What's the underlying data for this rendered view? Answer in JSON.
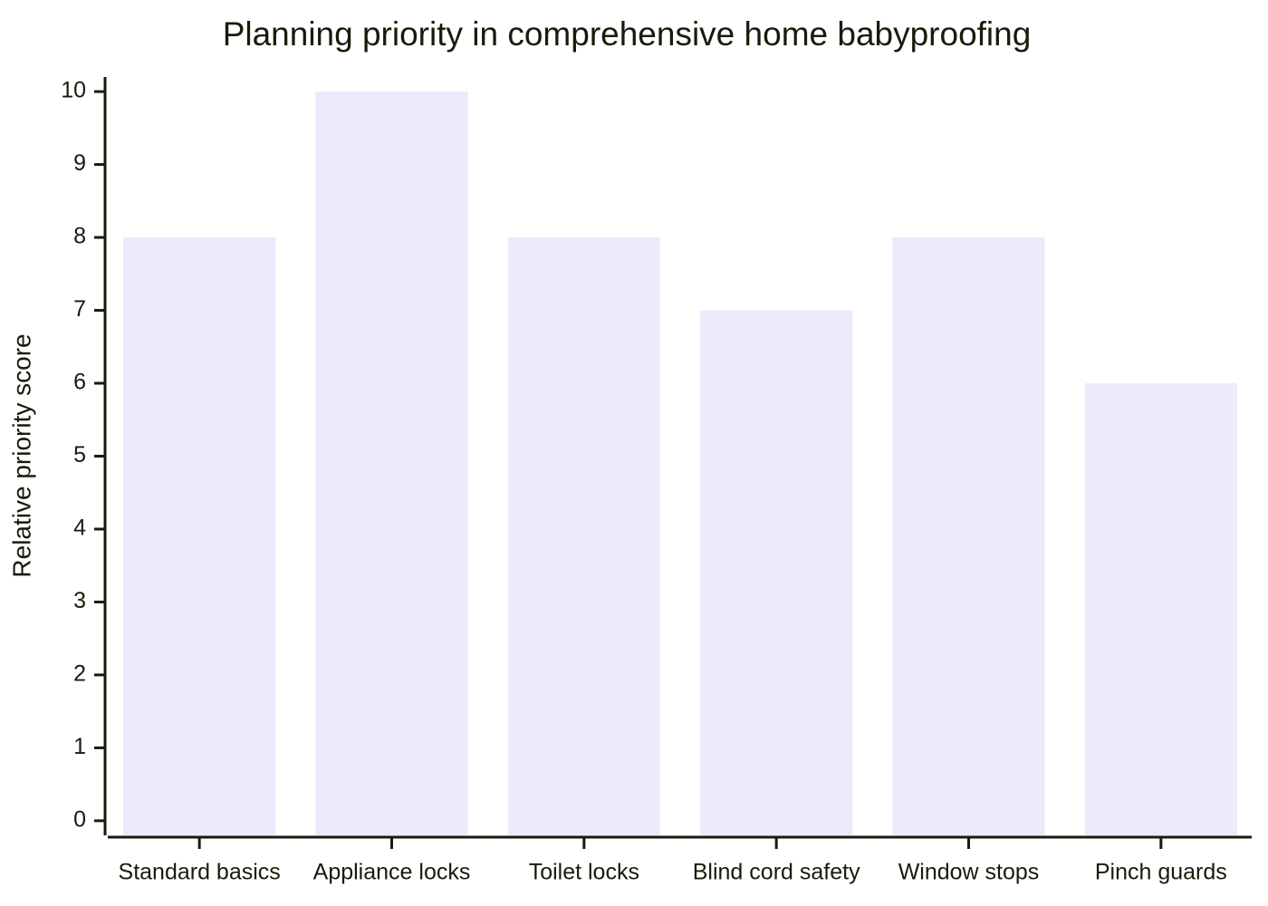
{
  "chart_data": {
    "type": "bar",
    "title": "Planning priority in comprehensive home babyproofing",
    "y_label": "Relative priority score",
    "categories": [
      "Standard basics",
      "Appliance locks",
      "Toilet locks",
      "Blind cord safety",
      "Window stops",
      "Pinch guards"
    ],
    "values": [
      8,
      10,
      8,
      7,
      8,
      6
    ],
    "color": "#ebebfb",
    "ylim": [
      -0.2,
      10.2
    ],
    "yticks": [
      0,
      1,
      2,
      3,
      4,
      5,
      6,
      7,
      8,
      9,
      10
    ],
    "grid": false
  }
}
